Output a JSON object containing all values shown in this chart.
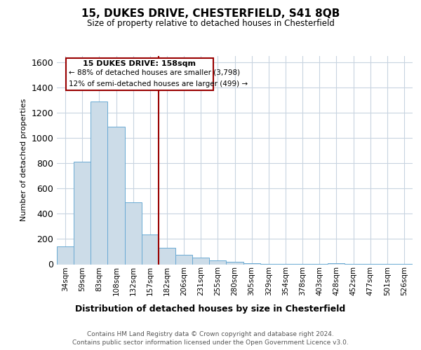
{
  "title": "15, DUKES DRIVE, CHESTERFIELD, S41 8QB",
  "subtitle": "Size of property relative to detached houses in Chesterfield",
  "xlabel": "Distribution of detached houses by size in Chesterfield",
  "ylabel": "Number of detached properties",
  "footer_line1": "Contains HM Land Registry data © Crown copyright and database right 2024.",
  "footer_line2": "Contains public sector information licensed under the Open Government Licence v3.0.",
  "annotation_line1": "15 DUKES DRIVE: 158sqm",
  "annotation_line2": "← 88% of detached houses are smaller (3,798)",
  "annotation_line3": "12% of semi-detached houses are larger (499) →",
  "categories": [
    "34sqm",
    "59sqm",
    "83sqm",
    "108sqm",
    "132sqm",
    "157sqm",
    "182sqm",
    "206sqm",
    "231sqm",
    "255sqm",
    "280sqm",
    "305sqm",
    "329sqm",
    "354sqm",
    "378sqm",
    "403sqm",
    "428sqm",
    "452sqm",
    "477sqm",
    "501sqm",
    "526sqm"
  ],
  "values": [
    140,
    810,
    1290,
    1090,
    490,
    235,
    130,
    75,
    50,
    30,
    20,
    10,
    5,
    4,
    3,
    2,
    10,
    1,
    1,
    1,
    1
  ],
  "bar_color": "#ccdce8",
  "bar_edge_color": "#6aaad4",
  "vline_x": 5.5,
  "vline_color": "#990000",
  "annotation_box_edge_color": "#990000",
  "ylim": [
    0,
    1650
  ],
  "yticks": [
    0,
    200,
    400,
    600,
    800,
    1000,
    1200,
    1400,
    1600
  ],
  "bg_color": "#ffffff",
  "plot_bg_color": "#ffffff",
  "grid_color": "#c8d4e0"
}
